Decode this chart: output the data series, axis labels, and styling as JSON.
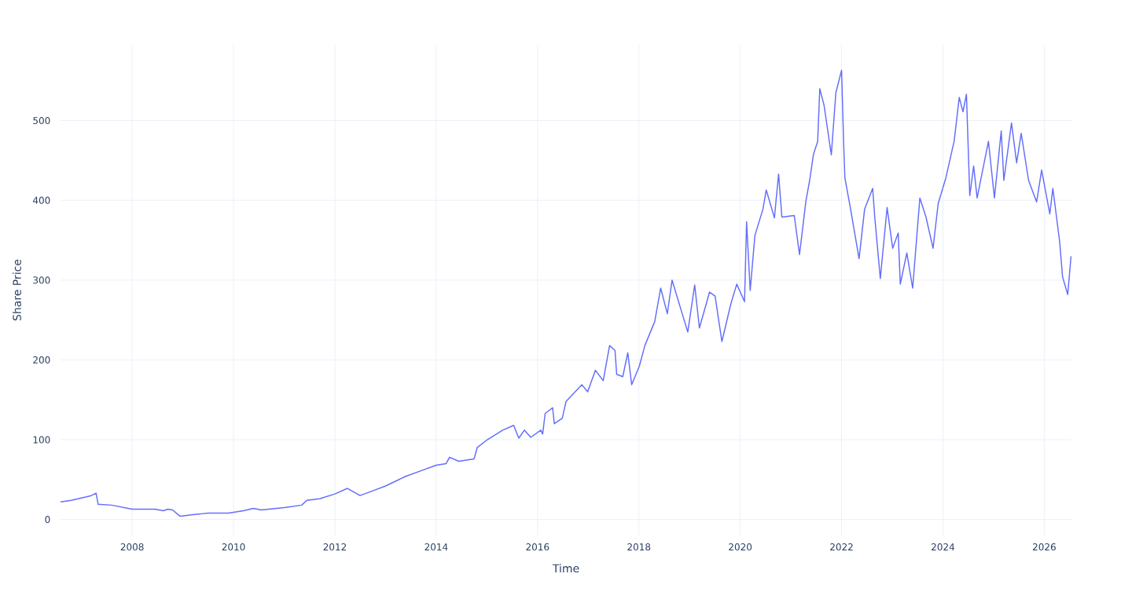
{
  "chart_data": {
    "type": "line",
    "xlabel": "Time",
    "ylabel": "Share Price",
    "xlim": [
      "2006-08-03",
      "2026-07-16"
    ],
    "ylim": [
      -20,
      595
    ],
    "xticks": [
      "2008",
      "2010",
      "2012",
      "2014",
      "2016",
      "2018",
      "2020",
      "2022",
      "2024",
      "2026"
    ],
    "yticks": [
      0,
      100,
      200,
      300,
      400,
      500
    ],
    "grid": true,
    "legend": false,
    "marker": "none",
    "line_style": "solid",
    "x": [
      "2006-08-03",
      "2006-10-19",
      "2007-01-01",
      "2007-03-13",
      "2007-04-16",
      "2007-05-01",
      "2007-08-07",
      "2008-01-01",
      "2008-06-13",
      "2008-08-14",
      "2008-09-13",
      "2008-10-19",
      "2008-12-13",
      "2009-03-13",
      "2009-07-01",
      "2009-11-25",
      "2010-03-13",
      "2010-05-25",
      "2010-07-19",
      "2011-01-01",
      "2011-05-07",
      "2011-06-13",
      "2011-09-13",
      "2012-01-01",
      "2012-04-01",
      "2012-07-01",
      "2012-10-01",
      "2013-01-01",
      "2013-05-25",
      "2013-09-13",
      "2014-01-01",
      "2014-03-13",
      "2014-04-07",
      "2014-06-13",
      "2014-10-01",
      "2014-10-23",
      "2015-01-04",
      "2015-04-25",
      "2015-07-13",
      "2015-08-19",
      "2015-09-28",
      "2015-11-13",
      "2016-01-25",
      "2016-02-07",
      "2016-02-25",
      "2016-04-19",
      "2016-05-01",
      "2016-06-28",
      "2016-07-25",
      "2016-11-16",
      "2016-12-28",
      "2017-02-22",
      "2017-04-19",
      "2017-06-04",
      "2017-07-13",
      "2017-07-25",
      "2017-09-07",
      "2017-10-13",
      "2017-11-10",
      "2018-01-04",
      "2018-02-13",
      "2018-04-25",
      "2018-06-07",
      "2018-07-25",
      "2018-08-28",
      "2018-12-19",
      "2019-02-07",
      "2019-03-13",
      "2019-05-25",
      "2019-07-04",
      "2019-08-22",
      "2019-10-25",
      "2019-12-07",
      "2020-02-01",
      "2020-02-16",
      "2020-03-13",
      "2020-04-16",
      "2020-06-13",
      "2020-07-07",
      "2020-09-04",
      "2020-10-04",
      "2020-10-28",
      "2021-01-25",
      "2021-03-04",
      "2021-04-19",
      "2021-05-16",
      "2021-06-13",
      "2021-07-13",
      "2021-07-28",
      "2021-08-28",
      "2021-10-19",
      "2021-11-21",
      "2022-01-01",
      "2022-01-16",
      "2022-01-25",
      "2022-03-07",
      "2022-05-07",
      "2022-06-16",
      "2022-08-13",
      "2022-08-28",
      "2022-10-07",
      "2022-11-25",
      "2023-01-04",
      "2023-02-13",
      "2023-02-28",
      "2023-04-16",
      "2023-05-28",
      "2023-07-19",
      "2023-09-01",
      "2023-10-22",
      "2023-11-28",
      "2024-01-22",
      "2024-03-22",
      "2024-04-28",
      "2024-05-25",
      "2024-06-19",
      "2024-07-13",
      "2024-08-10",
      "2024-09-04",
      "2024-11-25",
      "2025-01-07",
      "2025-02-25",
      "2025-03-16",
      "2025-05-10",
      "2025-06-16",
      "2025-07-19",
      "2025-09-10",
      "2025-11-07",
      "2025-12-13",
      "2026-02-10",
      "2026-03-04",
      "2026-04-22",
      "2026-05-13",
      "2026-06-19",
      "2026-07-13"
    ],
    "series": [
      {
        "color": "#636efa",
        "values": [
          22,
          24,
          27,
          30,
          33,
          19,
          18,
          13,
          13,
          11,
          13,
          12,
          4,
          6,
          8,
          8,
          11,
          14,
          12,
          15,
          18,
          24,
          26,
          32,
          39,
          30,
          36,
          42,
          54,
          61,
          68,
          70,
          78,
          73,
          76,
          90,
          100,
          112,
          118,
          102,
          112,
          103,
          112,
          107,
          133,
          140,
          120,
          127,
          148,
          169,
          160,
          187,
          174,
          218,
          212,
          182,
          179,
          209,
          169,
          192,
          218,
          248,
          290,
          258,
          300,
          235,
          294,
          240,
          285,
          280,
          223,
          270,
          295,
          273,
          373,
          287,
          356,
          389,
          413,
          378,
          433,
          379,
          381,
          332,
          399,
          425,
          458,
          474,
          540,
          519,
          457,
          535,
          563,
          471,
          428,
          389,
          327,
          389,
          415,
          379,
          302,
          391,
          340,
          359,
          295,
          334,
          290,
          403,
          379,
          340,
          396,
          428,
          474,
          529,
          511,
          533,
          406,
          443,
          403,
          474,
          403,
          487,
          425,
          497,
          447,
          484,
          425,
          398,
          438,
          383,
          415,
          348,
          304,
          282,
          330
        ]
      }
    ]
  }
}
